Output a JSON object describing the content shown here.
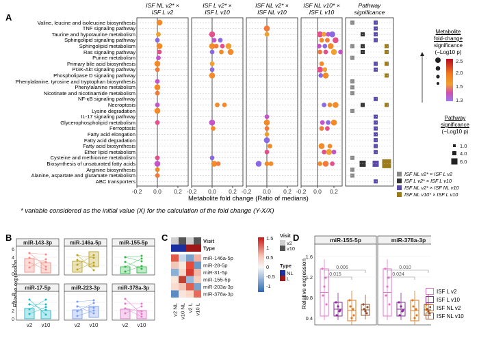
{
  "panel_a": {
    "label": "A",
    "columns": [
      {
        "id": "c1",
        "title": "ISF NL v2* ×\nISF L v2"
      },
      {
        "id": "c2",
        "title": "ISF L v2* ×\nISF L v10"
      },
      {
        "id": "c3",
        "title": "ISF NL v2* ×\nISF NL v10"
      },
      {
        "id": "c4",
        "title": "ISF NL v10* ×\nISF L v10"
      },
      {
        "id": "c5",
        "title": "Pathway\nsignificance"
      }
    ],
    "pathways": [
      "Valine, leucine and isoleucine biosynthesis",
      "TNF signaling pathway",
      "Taurine and hypotaurine metabolism",
      "Sphingolipid signaling pathway",
      "Sphingolipid metabolism",
      "Ras signaling pathway",
      "Purine metabolism",
      "Primary bile acid biosynthesis",
      "PI3K-Akt signaling pathway",
      "Phospholipase D signaling pathway",
      "Phenylalanine, tyrosine and tryptophan biosynthesis",
      "Phenylalanine metabolism",
      "Nicotinate and nicotinamide metabolism",
      "NF-κB signaling pathway",
      "Necroptosis",
      "Lysine degradation",
      "IL-17 signaling pathway",
      "Glycerophospholipid metabolism",
      "Ferroptosis",
      "Fatty acid elongation",
      "Fatty acid degradation",
      "Fatty acid biosynthesis",
      "Ether lipid metabolism",
      "Cysteine and methionine metabolism",
      "Biosynthesis of unsaturated fatty acids",
      "Arginine biosynthesis",
      "Alanine, aspartate and glutamate metabolism",
      "ABC transporters"
    ],
    "x_ticks": [
      "-0.2",
      "0.0",
      "0.2"
    ],
    "x_axis_label": "Metabolite fold change (Ratio of medians)",
    "footnote": "* variable considered as the initial value (X) for the calculation of the fold change (Y-X/X)",
    "legend_fc": {
      "title_lines": [
        "Metabolite",
        "fold-change",
        "significance",
        "(−Log10 p)"
      ],
      "ticks": [
        "2.5",
        "2.0",
        "1.5",
        "1.3"
      ]
    },
    "legend_ps": {
      "title_lines": [
        "Pathway",
        "significance",
        "(−Log10 p)"
      ],
      "ticks": [
        "1.0",
        "4.0",
        "6.0"
      ]
    },
    "legend_comp": [
      "ISF NL v2* × ISF L v2",
      "ISF L v2* × ISF L v10",
      "ISF NL v2* × ISF NL v10",
      "ISF NL v10* × ISF L v10"
    ],
    "comp_colors": [
      "#888888",
      "#333333",
      "#5a4aa8",
      "#9a7a1a"
    ],
    "points": {
      "c1": [
        [
          0,
          0.02
        ],
        [
          2,
          0.01
        ],
        [
          3,
          0.0
        ],
        [
          4,
          0.02
        ],
        [
          5,
          0.02
        ],
        [
          6,
          0.01
        ],
        [
          7,
          0.0
        ],
        [
          8,
          0.0
        ],
        [
          10,
          0.0
        ],
        [
          11,
          0.0
        ],
        [
          12,
          0.0
        ],
        [
          14,
          0.0
        ],
        [
          15,
          0.0
        ],
        [
          17,
          0.0
        ],
        [
          23,
          0.0
        ],
        [
          24,
          0.0
        ],
        [
          25,
          0.0
        ],
        [
          26,
          0.0
        ]
      ],
      "c2": [
        [
          2,
          0.0
        ],
        [
          3,
          0.02
        ],
        [
          3,
          0.08
        ],
        [
          4,
          0.0
        ],
        [
          4,
          0.04
        ],
        [
          4,
          0.1
        ],
        [
          4,
          0.16
        ],
        [
          5,
          0.0
        ],
        [
          5,
          0.09
        ],
        [
          5,
          0.18
        ],
        [
          7,
          0.0
        ],
        [
          8,
          0.0
        ],
        [
          9,
          0.0
        ],
        [
          14,
          0.05
        ],
        [
          14,
          0.12
        ],
        [
          17,
          0.0
        ],
        [
          18,
          0.01
        ],
        [
          23,
          0.0
        ],
        [
          24,
          0.02
        ],
        [
          24,
          0.06
        ]
      ],
      "c3": [
        [
          1,
          0.0
        ],
        [
          2,
          0.0
        ],
        [
          16,
          0.0
        ],
        [
          17,
          0.0
        ],
        [
          18,
          0.0
        ],
        [
          19,
          0.0
        ],
        [
          20,
          0.0
        ],
        [
          21,
          0.03
        ],
        [
          22,
          0.0
        ],
        [
          24,
          -0.08
        ],
        [
          24,
          0.0
        ],
        [
          24,
          0.04
        ]
      ],
      "c4": [
        [
          2,
          0.03
        ],
        [
          2,
          0.08
        ],
        [
          2,
          0.13
        ],
        [
          2,
          0.18
        ],
        [
          3,
          0.05
        ],
        [
          3,
          0.12
        ],
        [
          3,
          0.22
        ],
        [
          4,
          0.02
        ],
        [
          4,
          0.09
        ],
        [
          4,
          0.16
        ],
        [
          5,
          0.03
        ],
        [
          5,
          0.1
        ],
        [
          5,
          0.2
        ],
        [
          5,
          0.28
        ],
        [
          7,
          0.05
        ],
        [
          8,
          0.03
        ],
        [
          8,
          0.09
        ],
        [
          9,
          0.04
        ],
        [
          9,
          0.1
        ],
        [
          14,
          0.08
        ],
        [
          14,
          0.15
        ],
        [
          14,
          0.22
        ],
        [
          17,
          0.06
        ],
        [
          17,
          0.13
        ],
        [
          17,
          0.2
        ],
        [
          18,
          0.05
        ],
        [
          18,
          0.12
        ],
        [
          21,
          0.05
        ],
        [
          21,
          0.15
        ],
        [
          22,
          0.08
        ],
        [
          22,
          0.14
        ],
        [
          22,
          0.2
        ],
        [
          24,
          0.03
        ],
        [
          24,
          0.1
        ],
        [
          24,
          0.18
        ]
      ]
    }
  },
  "panel_b": {
    "label": "B",
    "ylabel": "Relative expression",
    "mirnas": [
      {
        "name": "miR-143-3p",
        "color": "#f28b82"
      },
      {
        "name": "miR-146a-5p",
        "color": "#b8a21e"
      },
      {
        "name": "miR-155-5p",
        "color": "#2eb84a"
      },
      {
        "name": "miR-17-5p",
        "color": "#1fb8c8"
      },
      {
        "name": "miR-223-3p",
        "color": "#7a9cf0"
      },
      {
        "name": "miR-378a-3p",
        "color": "#e276c8"
      }
    ],
    "y_ticks": [
      "6",
      "4",
      "2",
      "0"
    ],
    "x_ticks": [
      "v2",
      "v10"
    ]
  },
  "panel_c": {
    "label": "C",
    "row_labels": [
      "Visit",
      "Type",
      "miR-146a-5p",
      "miR-28-5p",
      "miR-31-5p",
      "miR-155-5p",
      "miR-203a-3p",
      "miR-378a-3p"
    ],
    "col_labels": [
      "v2 NL",
      "v10 NL",
      "v2 L",
      "v10 L"
    ],
    "scale_ticks": [
      "1.5",
      "1",
      "0.5",
      "0",
      "-0.5",
      "-1"
    ],
    "legend_visit_title": "Visit",
    "legend_visit": [
      "v2",
      "v10"
    ],
    "legend_type_title": "Type",
    "legend_type": [
      "NL",
      "L"
    ]
  },
  "panel_d": {
    "label": "D",
    "ylabel": "Relative expression",
    "left": {
      "title": "miR-155-5p",
      "y_ticks": [
        "1.6",
        "1.2",
        "0.8",
        "0.4"
      ],
      "pvals": [
        "0.006",
        "0.015"
      ]
    },
    "right": {
      "title": "miR-378a-3p",
      "pvals": [
        "0.010",
        "0.024"
      ]
    },
    "legend": [
      {
        "label": "ISF L v2",
        "color": "#e276c8"
      },
      {
        "label": "ISF L v10",
        "color": "#8a2a9c"
      },
      {
        "label": "ISF NL v2",
        "color": "#d97a22"
      },
      {
        "label": "ISF NL v10",
        "color": "#8a5030"
      }
    ]
  }
}
